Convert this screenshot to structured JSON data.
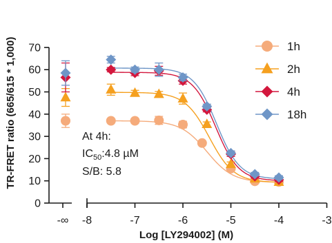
{
  "chart_data": {
    "type": "scatter",
    "xlabel": "Log [LY294002] (M)",
    "ylabel": "TR-FRET ratio (665/615 * 1,000)",
    "ylim": [
      0,
      70
    ],
    "xlim": [
      -8,
      -3
    ],
    "y_ticks": [
      "0",
      "10",
      "20",
      "30",
      "40",
      "50",
      "60",
      "70"
    ],
    "x_ticks": [
      "-8",
      "-7",
      "-6",
      "-5",
      "-4",
      "-3"
    ],
    "x_break_label": "-∞",
    "series": [
      {
        "name": "1h",
        "color": "#f5ab7b",
        "marker": "circle",
        "baseline": {
          "y": 37,
          "err": 3
        },
        "points": [
          {
            "x": -7.5,
            "y": 37,
            "err": 0.8
          },
          {
            "x": -7.0,
            "y": 37,
            "err": 1.0
          },
          {
            "x": -6.5,
            "y": 37.2,
            "err": 1.8
          },
          {
            "x": -6.0,
            "y": 35.3,
            "err": 1.5
          },
          {
            "x": -5.6,
            "y": 27,
            "err": 0.8
          },
          {
            "x": -5.0,
            "y": 15.5,
            "err": 0.8
          },
          {
            "x": -4.5,
            "y": 9.8,
            "err": 0.8
          },
          {
            "x": -4.0,
            "y": 9.5,
            "err": 0.8
          }
        ],
        "fit": {
          "top": 37,
          "bottom": 9.3,
          "logIC50": -5.5,
          "hill": 1.6
        }
      },
      {
        "name": "2h",
        "color": "#f5a01f",
        "marker": "triangle",
        "baseline": {
          "y": 47.5,
          "err": 4
        },
        "points": [
          {
            "x": -7.5,
            "y": 51,
            "err": 2.5
          },
          {
            "x": -7.0,
            "y": 49.5,
            "err": 1.2
          },
          {
            "x": -6.5,
            "y": 49,
            "err": 1.2
          },
          {
            "x": -6.0,
            "y": 47,
            "err": 2.5
          },
          {
            "x": -5.5,
            "y": 35.5,
            "err": 1.0
          },
          {
            "x": -5.0,
            "y": 17.5,
            "err": 1.0
          },
          {
            "x": -4.5,
            "y": 11,
            "err": 0.8
          },
          {
            "x": -4.0,
            "y": 9.5,
            "err": 0.8
          }
        ],
        "fit": {
          "top": 49.8,
          "bottom": 9.3,
          "logIC50": -5.45,
          "hill": 1.7
        }
      },
      {
        "name": "4h",
        "color": "#d3173d",
        "marker": "diamond",
        "baseline": {
          "y": 56.5,
          "err": 6.5
        },
        "points": [
          {
            "x": -7.5,
            "y": 60,
            "err": 1.0
          },
          {
            "x": -7.0,
            "y": 58.5,
            "err": 1.2
          },
          {
            "x": -6.5,
            "y": 59.5,
            "err": 2.0
          },
          {
            "x": -6.0,
            "y": 55,
            "err": 1.5
          },
          {
            "x": -5.5,
            "y": 42,
            "err": 1.0
          },
          {
            "x": -5.0,
            "y": 22,
            "err": 1.0
          },
          {
            "x": -4.5,
            "y": 12,
            "err": 0.8
          },
          {
            "x": -4.0,
            "y": 10.5,
            "err": 0.8
          }
        ],
        "fit": {
          "top": 58.8,
          "bottom": 10.0,
          "logIC50": -5.32,
          "hill": 1.8
        }
      },
      {
        "name": "18h",
        "color": "#6f96c7",
        "marker": "diamond",
        "baseline": {
          "y": 58.5,
          "err": 5.5
        },
        "points": [
          {
            "x": -7.5,
            "y": 64.5,
            "err": 1.5
          },
          {
            "x": -7.0,
            "y": 60,
            "err": 1.2
          },
          {
            "x": -6.5,
            "y": 60,
            "err": 3.0
          },
          {
            "x": -6.0,
            "y": 56.5,
            "err": 1.5
          },
          {
            "x": -5.5,
            "y": 43.5,
            "err": 1.0
          },
          {
            "x": -5.0,
            "y": 22.5,
            "err": 1.0
          },
          {
            "x": -4.5,
            "y": 13,
            "err": 0.8
          },
          {
            "x": -4.0,
            "y": 11.5,
            "err": 0.8
          }
        ],
        "fit": {
          "top": 60.7,
          "bottom": 10.8,
          "logIC50": -5.3,
          "hill": 1.8
        }
      }
    ],
    "annotation": {
      "line1": "At 4h:",
      "ic50_prefix": "IC",
      "ic50_sub": "50",
      "ic50_value": ":4.8 µM",
      "sb": "S/B: 5.8"
    },
    "legend_position": "right"
  }
}
